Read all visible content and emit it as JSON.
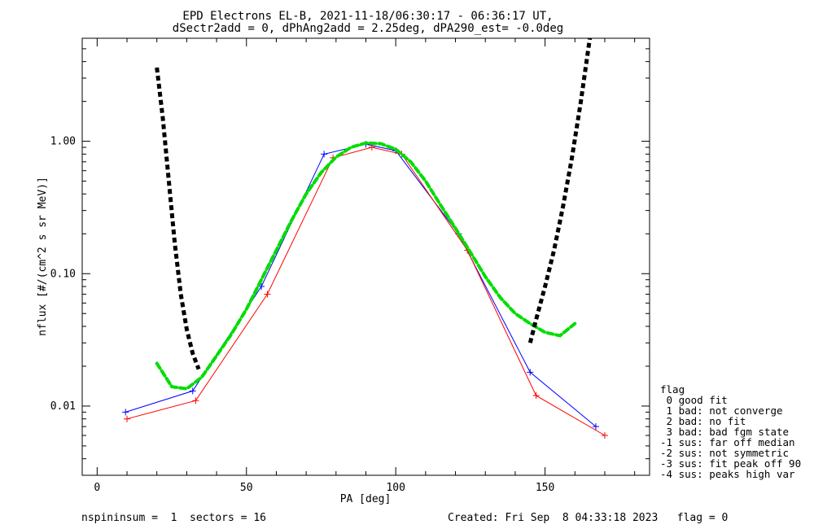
{
  "chart_data": {
    "type": "line",
    "title_line1": "EPD Electrons EL-B, 2021-11-18/06:30:17 - 06:36:17 UT,",
    "title_line2": "dSectr2add = 0, dPhAng2add = 2.25deg, dPA290_est=  -0.0deg",
    "xlabel": "PA [deg]",
    "ylabel": "nflux [#/(cm^2 s sr MeV)]",
    "xlim": [
      -5,
      185
    ],
    "ylim": [
      0.003,
      6.0
    ],
    "yscale": "log",
    "grid": false,
    "x_ticks": [
      0,
      50,
      100,
      150
    ],
    "x_tick_labels": [
      "0",
      "50",
      "100",
      "150"
    ],
    "y_ticks": [
      0.01,
      0.1,
      1.0
    ],
    "y_tick_labels": [
      "0.01",
      "0.10",
      "1.00"
    ],
    "colors": {
      "blue": "#0000ff",
      "red": "#ff0000",
      "green": "#00dd00",
      "black": "#000000"
    },
    "series": [
      {
        "color": "blue",
        "x": [
          9.5,
          32,
          55,
          76,
          90,
          100,
          121,
          145,
          167
        ],
        "values": [
          0.009,
          0.013,
          0.08,
          0.8,
          0.95,
          0.85,
          0.2,
          0.018,
          0.007
        ]
      },
      {
        "color": "red",
        "x": [
          10,
          33,
          57,
          79,
          92,
          102,
          124,
          147,
          170
        ],
        "values": [
          0.008,
          0.011,
          0.07,
          0.75,
          0.9,
          0.8,
          0.15,
          0.012,
          0.006
        ]
      },
      {
        "color": "green",
        "x": [
          20,
          25,
          30,
          35,
          40,
          45,
          50,
          55,
          60,
          65,
          70,
          75,
          80,
          85,
          90,
          95,
          100,
          105,
          110,
          115,
          120,
          125,
          130,
          135,
          140,
          145,
          150,
          155,
          160
        ],
        "values": [
          0.021,
          0.014,
          0.0135,
          0.0165,
          0.024,
          0.035,
          0.054,
          0.09,
          0.15,
          0.25,
          0.4,
          0.58,
          0.76,
          0.9,
          0.97,
          0.96,
          0.87,
          0.7,
          0.5,
          0.33,
          0.22,
          0.145,
          0.095,
          0.066,
          0.05,
          0.042,
          0.036,
          0.034,
          0.042
        ]
      },
      {
        "color": "black",
        "x": [
          20,
          22,
          24,
          26,
          28,
          30,
          32,
          34
        ],
        "values": [
          3.6,
          1.5,
          0.5,
          0.17,
          0.07,
          0.038,
          0.025,
          0.019
        ]
      },
      {
        "color": "black",
        "x": [
          145,
          147,
          150,
          153,
          156,
          159,
          162,
          165
        ],
        "values": [
          0.03,
          0.045,
          0.08,
          0.15,
          0.32,
          0.75,
          2.0,
          6.0
        ]
      }
    ],
    "legend": {
      "title": "flag",
      "entries": [
        " 0 good fit",
        " 1 bad: not converge",
        " 2 bad: no fit",
        " 3 bad: bad fgm state",
        "-1 sus: far off median",
        "-2 sus: not symmetric",
        "-3 sus: fit peak off 90",
        "-4 sus: peaks high var"
      ]
    }
  },
  "footer": {
    "left": "nspininsum =  1  sectors = 16",
    "right": "Created: Fri Sep  8 04:33:18 2023   flag = 0"
  }
}
